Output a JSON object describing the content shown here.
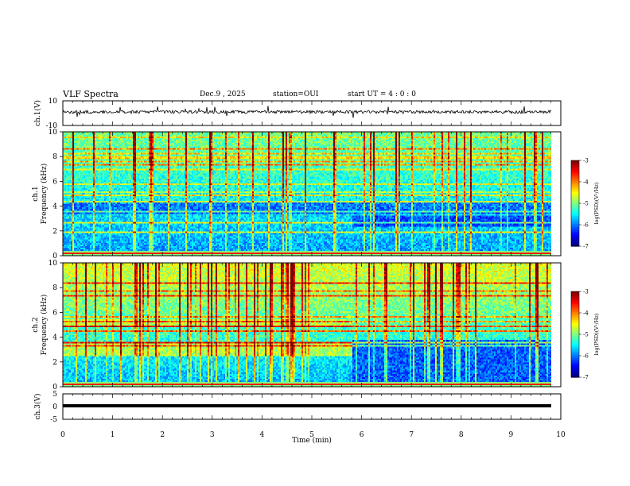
{
  "header": {
    "title": "VLF Spectra",
    "date": "Dec.9 , 2025",
    "station": "station=OUI",
    "start": "start UT = 4 : 0 : 0"
  },
  "chart_data": [
    {
      "type": "line",
      "title": "VLF Spectra",
      "ylabel": "ch.1(V)",
      "ylim": [
        -10,
        10
      ],
      "y_ticks": [
        "10",
        "-10"
      ],
      "xlim": [
        0,
        10
      ],
      "description_series": "waveform",
      "series": [
        {
          "name": "ch.1 waveform",
          "baseline_v": 0
        }
      ]
    },
    {
      "type": "heatmap",
      "ylabel": "ch.1 Frequency (kHz)",
      "ylim": [
        0,
        10
      ],
      "y_ticks": [
        "0",
        "2",
        "4",
        "6",
        "8",
        "10"
      ],
      "xlim": [
        0,
        10
      ],
      "transition_min": 5.8,
      "colorbar": {
        "label": "log(PSD)(V²/Hz)",
        "range": [
          -7,
          -3
        ],
        "ticks": [
          "-3",
          "-4",
          "-5",
          "-6",
          "-7"
        ]
      }
    },
    {
      "type": "heatmap",
      "ylabel": "ch.2 Frequency (kHz)",
      "ylim": [
        0,
        10
      ],
      "y_ticks": [
        "0",
        "2",
        "4",
        "6",
        "8",
        "10"
      ],
      "xlim": [
        0,
        10
      ],
      "transition_min": 5.8,
      "colorbar": {
        "label": "log(PSD)(V²/Hz)",
        "range": [
          -7,
          -3
        ],
        "ticks": [
          "-3",
          "-4",
          "-5",
          "-6",
          "-7"
        ]
      }
    },
    {
      "type": "line",
      "ylabel": "ch.3(V)",
      "ylim": [
        -5,
        5
      ],
      "y_ticks": [
        "5",
        "0",
        "-5"
      ],
      "xlim": [
        0,
        10
      ],
      "series": [
        {
          "name": "ch.3 level",
          "value_v": 0
        }
      ]
    }
  ],
  "x_axis": {
    "label": "Time (min)",
    "ticks": [
      "0",
      "1",
      "2",
      "3",
      "4",
      "5",
      "6",
      "7",
      "8",
      "9",
      "10"
    ]
  },
  "colorbar_label": "log(PSD)(V²/Hz)",
  "colorbar_ticks": [
    "-3",
    "-4",
    "-5",
    "-6",
    "-7"
  ]
}
